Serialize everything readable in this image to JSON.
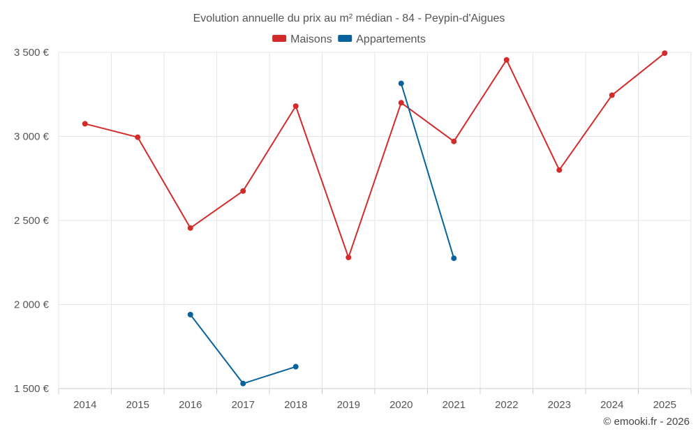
{
  "chart_data": {
    "type": "line",
    "title": "Evolution annuelle du prix au m² médian - 84 - Peypin-d'Aigues",
    "categories": [
      "2014",
      "2015",
      "2016",
      "2017",
      "2018",
      "2019",
      "2020",
      "2021",
      "2022",
      "2023",
      "2024",
      "2025"
    ],
    "series": [
      {
        "name": "Maisons",
        "color": "#d32a2a",
        "values": [
          3075,
          2995,
          2455,
          2675,
          3180,
          2280,
          3200,
          2970,
          3455,
          2800,
          3245,
          3495
        ]
      },
      {
        "name": "Appartements",
        "color": "#08639c",
        "values": [
          null,
          null,
          1940,
          1530,
          1630,
          null,
          3315,
          2275,
          null,
          null,
          null,
          null
        ]
      }
    ],
    "yticks": [
      1500,
      2000,
      2500,
      3000,
      3500
    ],
    "ytick_labels": [
      "1 500 €",
      "2 000 €",
      "2 500 €",
      "3 000 €",
      "3 500 €"
    ],
    "ylim": [
      1500,
      3500
    ],
    "grid": true,
    "legend_position": "top-center"
  },
  "credit": "© emooki.fr - 2026"
}
